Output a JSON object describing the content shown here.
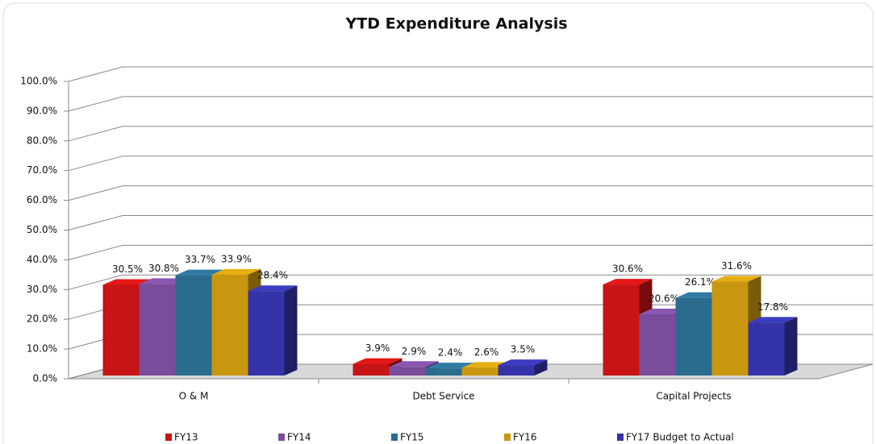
{
  "chart_data": {
    "type": "bar3d",
    "title": "YTD Expenditure Analysis",
    "categories": [
      "O & M",
      "Debt Service",
      "Capital Projects"
    ],
    "series": [
      {
        "name": "FY13",
        "color": "#c81414",
        "values": [
          30.5,
          3.9,
          30.6
        ],
        "value_labels": [
          "30.5%",
          "3.9%",
          "30.6%"
        ]
      },
      {
        "name": "FY14",
        "color": "#7a4c9c",
        "values": [
          30.8,
          2.9,
          20.6
        ],
        "value_labels": [
          "30.8%",
          "2.9%",
          "20.6%"
        ]
      },
      {
        "name": "FY15",
        "color": "#2a6b8e",
        "values": [
          33.7,
          2.4,
          26.1
        ],
        "value_labels": [
          "33.7%",
          "2.4%",
          "26.1%"
        ]
      },
      {
        "name": "FY16",
        "color": "#c9970f",
        "values": [
          33.9,
          2.6,
          31.6
        ],
        "value_labels": [
          "33.9%",
          "2.6%",
          "31.6%"
        ]
      },
      {
        "name": "FY17 Budget to Actual",
        "color": "#3434a8",
        "values": [
          28.4,
          3.5,
          17.8
        ],
        "value_labels": [
          "28.4%",
          "3.5%",
          "17.8%"
        ]
      }
    ],
    "ylim": [
      0,
      100
    ],
    "yticks": [
      {
        "value": 0,
        "label": "0.0%"
      },
      {
        "value": 10,
        "label": "10.0%"
      },
      {
        "value": 20,
        "label": "20.0%"
      },
      {
        "value": 30,
        "label": "30.0%"
      },
      {
        "value": 40,
        "label": "40.0%"
      },
      {
        "value": 50,
        "label": "50.0%"
      },
      {
        "value": 60,
        "label": "60.0%"
      },
      {
        "value": 70,
        "label": "70.0%"
      },
      {
        "value": 80,
        "label": "80.0%"
      },
      {
        "value": 90,
        "label": "90.0%"
      },
      {
        "value": 100,
        "label": "100.0%"
      }
    ],
    "grid": true,
    "legend": "bottom"
  }
}
